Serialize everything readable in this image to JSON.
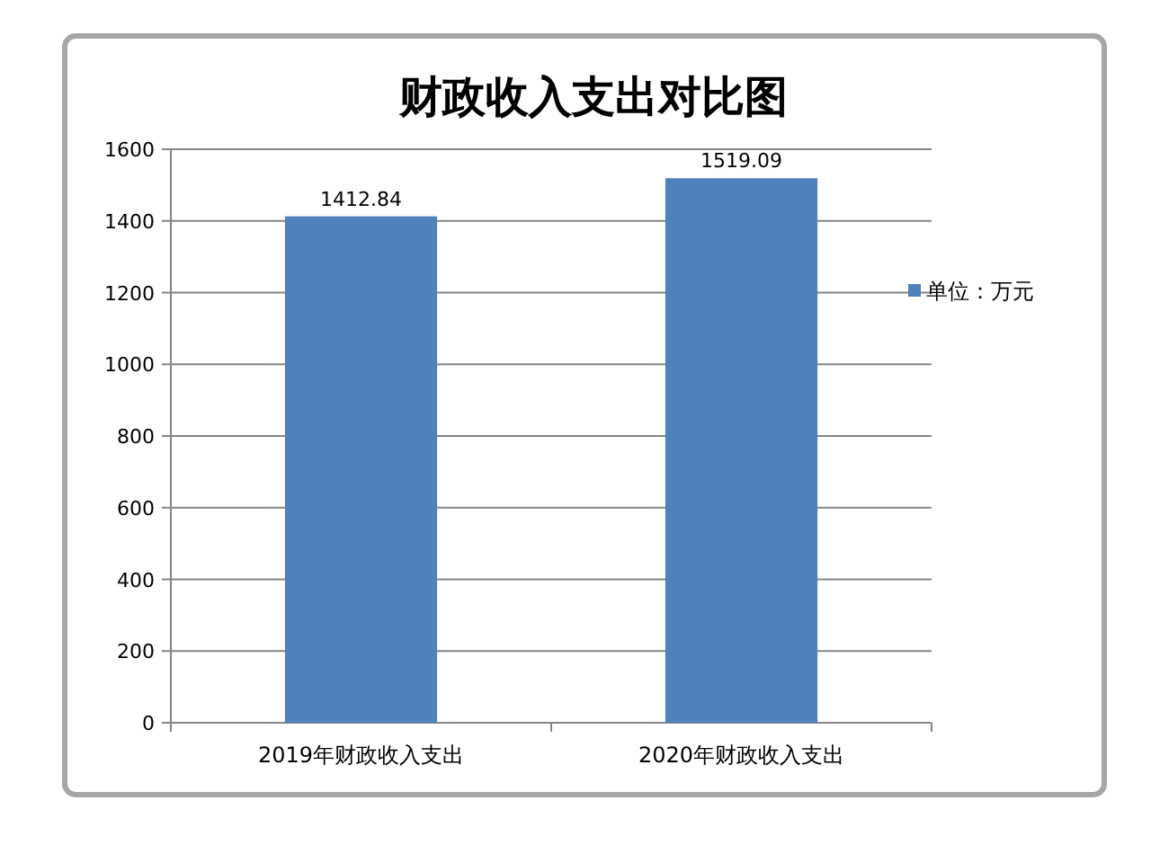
{
  "chart_data": {
    "type": "bar",
    "title": "财政收入支出对比图",
    "categories": [
      "2019年财政收入支出",
      "2020年财政收入支出"
    ],
    "series": [
      {
        "name": "单位：万元",
        "color": "#4f81bd",
        "values": [
          1412.84,
          1519.09
        ]
      }
    ],
    "ylim": [
      0,
      1600
    ],
    "yticks": [
      0,
      200,
      400,
      600,
      800,
      1000,
      1200,
      1400,
      1600
    ],
    "grid": "y",
    "legend": "right",
    "data_labels": true
  }
}
